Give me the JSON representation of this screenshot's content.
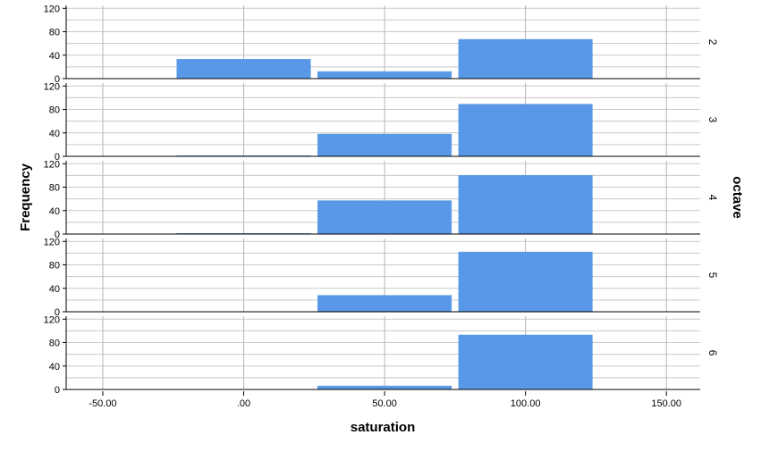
{
  "chart_data": {
    "type": "bar",
    "subtype": "faceted-histogram",
    "xlabel": "saturation",
    "ylabel": "Frequency",
    "facet_variable": "octave",
    "x_ticks": [
      -50,
      0,
      50,
      100,
      150
    ],
    "x_tick_labels": [
      "-50.00",
      ".00",
      "50.00",
      "100.00",
      "150.00"
    ],
    "xlim": [
      -63,
      162
    ],
    "y_ticks": [
      0,
      40,
      80,
      120
    ],
    "y_tick_labels": [
      "0",
      "40",
      "80",
      "120"
    ],
    "ylim": [
      0,
      125
    ],
    "grid": true,
    "bar_color": "#5898e6",
    "bins": [
      {
        "start": -25,
        "end": 25
      },
      {
        "start": 25,
        "end": 75
      },
      {
        "start": 75,
        "end": 125
      }
    ],
    "facets": [
      {
        "label": "2",
        "values": [
          33,
          12,
          67
        ]
      },
      {
        "label": "3",
        "values": [
          1,
          38,
          89
        ]
      },
      {
        "label": "4",
        "values": [
          1,
          57,
          100
        ]
      },
      {
        "label": "5",
        "values": [
          0,
          28,
          102
        ]
      },
      {
        "label": "6",
        "values": [
          0,
          6,
          93
        ]
      }
    ]
  }
}
